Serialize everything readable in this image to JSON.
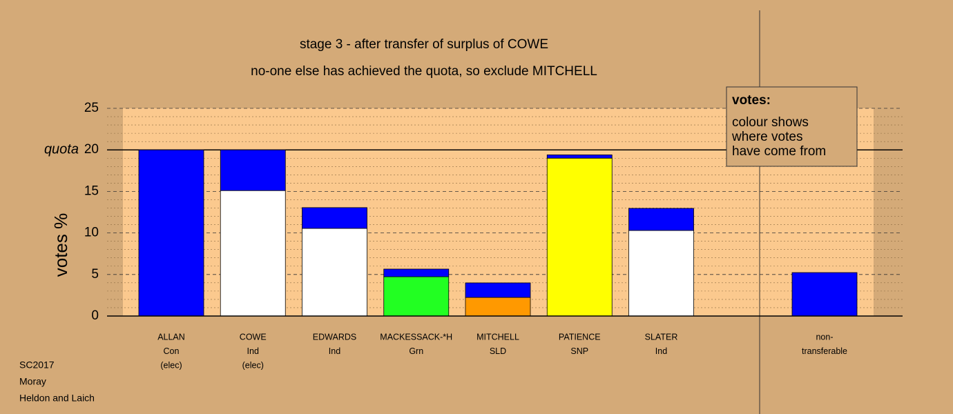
{
  "chart_data": {
    "type": "bar",
    "stacked": true,
    "title": "stage 3 - after transfer of surplus of COWE",
    "subtitle": "no-one else has achieved the quota, so exclude MITCHELL",
    "ylabel": "votes %",
    "quota_label": "quota",
    "quota": 20,
    "ylim": [
      0,
      25
    ],
    "yticks": [
      0,
      5,
      10,
      15,
      20,
      25
    ],
    "minor_grid_step": 1,
    "grid": true,
    "categories": [
      [
        "ALLAN",
        "Con",
        "(elec)"
      ],
      [
        "COWE",
        "Ind",
        "(elec)"
      ],
      [
        "EDWARDS",
        "Ind"
      ],
      [
        "MACKESSACK-*H",
        "Grn"
      ],
      [
        "MITCHELL",
        "SLD"
      ],
      [
        "PATIENCE",
        "SNP"
      ],
      [
        "SLATER",
        "Ind"
      ],
      null,
      [
        "non-",
        "transferable"
      ]
    ],
    "series": [
      {
        "colors": [
          "#0000ff",
          "#ffffff",
          "#ffffff",
          "#22ff22",
          "#ff9900",
          "#ffff00",
          "#ffffff",
          null,
          "#0000ff"
        ],
        "values": [
          20,
          15.1,
          10.55,
          4.73,
          2.24,
          19.0,
          10.3,
          null,
          5.23
        ]
      },
      {
        "color": "#0000ff",
        "values": [
          null,
          4.9,
          2.5,
          0.92,
          1.75,
          0.4,
          2.66,
          null,
          null
        ]
      }
    ],
    "legend_box": {
      "title": "votes:",
      "lines": [
        "colour shows",
        "where votes",
        "have come from"
      ]
    },
    "footer": [
      "SC2017",
      "Moray",
      "Heldon and Laich"
    ]
  }
}
